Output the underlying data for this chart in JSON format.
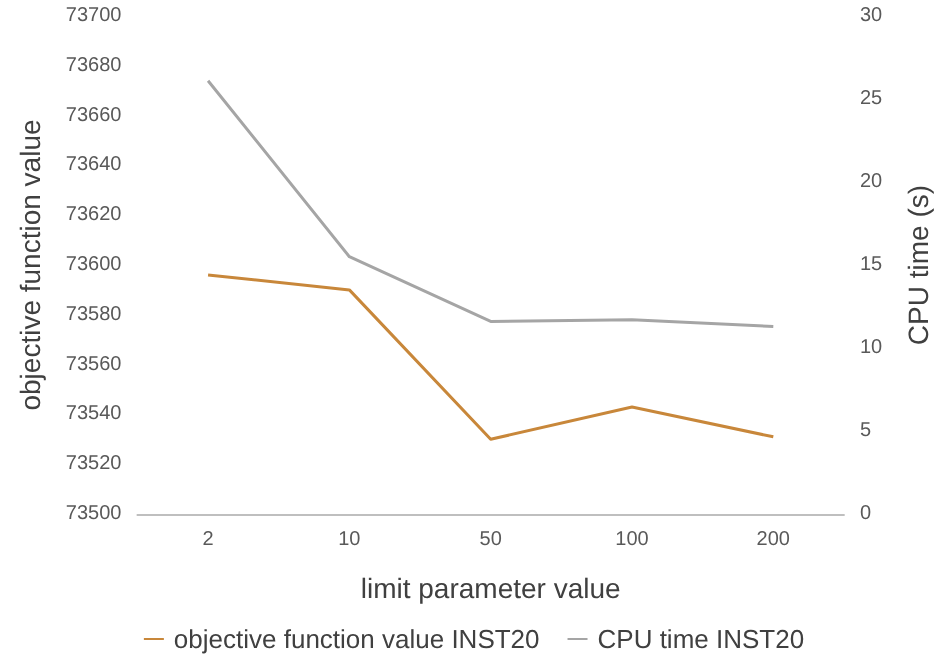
{
  "chart_data": {
    "type": "line",
    "xlabel": "limit parameter value",
    "ylabel": "objective function value",
    "y2label": "CPU time (s)",
    "categories": [
      "2",
      "10",
      "50",
      "100",
      "200"
    ],
    "series": [
      {
        "name": "objective function value INST20",
        "color": "#c8873a",
        "values": [
          73596,
          73590,
          73530,
          73543,
          73531
        ]
      },
      {
        "name": "CPU time INST20",
        "color": "#a5a5a5",
        "axis": "y2",
        "values": [
          26.1,
          15.5,
          11.6,
          11.7,
          11.3
        ]
      }
    ],
    "ylim": [
      73500,
      73700
    ],
    "yticks": [
      73500,
      73520,
      73540,
      73560,
      73580,
      73600,
      73620,
      73640,
      73660,
      73680,
      73700
    ],
    "y2lim": [
      0,
      30
    ],
    "y2ticks": [
      0,
      5,
      10,
      15,
      20,
      25,
      30
    ],
    "grid": false,
    "legend": "bottom",
    "marker": "none",
    "line_style": "solid"
  }
}
